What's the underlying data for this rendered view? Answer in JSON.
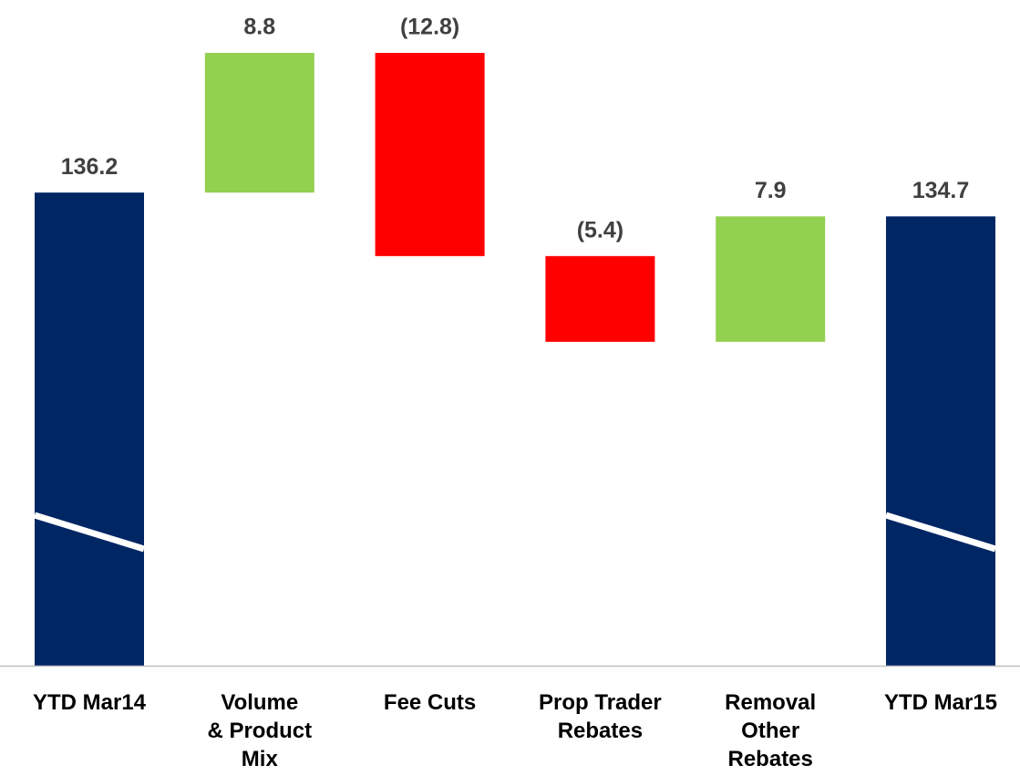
{
  "chart_data": {
    "type": "waterfall",
    "categories": [
      "YTD Mar14",
      "Volume\n& Product\nMix",
      "Fee Cuts",
      "Prop Trader\nRebates",
      "Removal\nOther\nRebates",
      "YTD Mar15"
    ],
    "values": [
      136.2,
      8.8,
      -12.8,
      -5.4,
      7.9,
      134.7
    ],
    "value_labels": [
      "136.2",
      "8.8",
      "(12.8)",
      "(5.4)",
      "7.9",
      "134.7"
    ],
    "measures": [
      "total",
      "relative",
      "relative",
      "relative",
      "relative",
      "total"
    ],
    "colors": {
      "total": "#002664",
      "increase": "#92d050",
      "decrease": "#ff0000"
    },
    "ylim": [
      106.4,
      145
    ],
    "axis_break": true
  }
}
